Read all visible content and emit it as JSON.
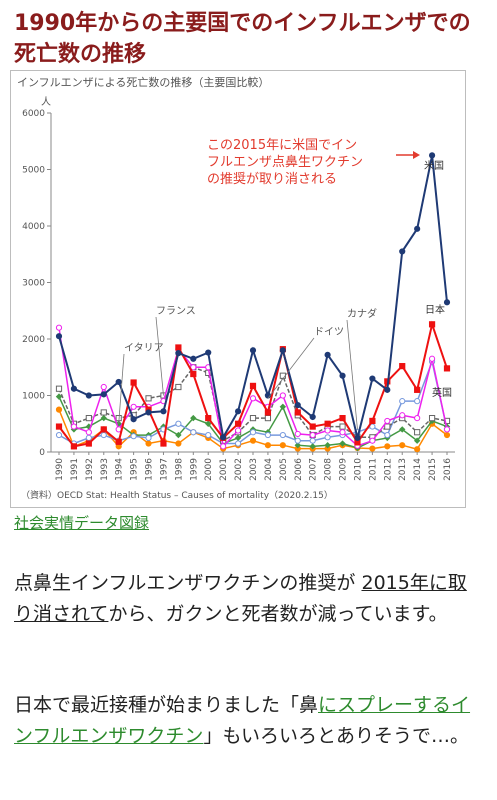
{
  "article": {
    "heading": "1990年からの主要国でのインフルエンザでの死亡数の推移",
    "source_link": "社会実情データ図録",
    "p1": {
      "before": "点鼻生インフルエンザワクチンの推奨が ",
      "link": "2015年に取り消されて",
      "after": "から、ガクンと死者数が減っています。"
    },
    "p2": {
      "before": "日本で最近接種が始まりました「鼻",
      "link": "にスプレーするインフルエンザワクチン",
      "after": "」もいろいろとありそうで…。"
    }
  },
  "chart_data": {
    "type": "line",
    "title": "インフルエンザによる死亡数の推移（主要国比較）",
    "ylabel": "人",
    "ylim": [
      0,
      6000
    ],
    "yticks": [
      0,
      1000,
      2000,
      3000,
      4000,
      5000,
      6000
    ],
    "categories": [
      "1990",
      "1991",
      "1992",
      "1993",
      "1994",
      "1995",
      "1996",
      "1997",
      "1998",
      "1999",
      "2000",
      "2001",
      "2002",
      "2003",
      "2004",
      "2005",
      "2006",
      "2007",
      "2008",
      "2009",
      "2010",
      "2011",
      "2012",
      "2013",
      "2014",
      "2015",
      "2016"
    ],
    "series": [
      {
        "name": "米国",
        "color": "#1f3a75",
        "marker": "circle",
        "values": [
          2050,
          1120,
          1000,
          1020,
          1240,
          580,
          700,
          720,
          1750,
          1650,
          1760,
          260,
          720,
          1800,
          1000,
          1800,
          830,
          620,
          1720,
          1350,
          250,
          1300,
          1100,
          3550,
          3950,
          5250,
          2650
        ]
      },
      {
        "name": "日本",
        "color": "#ee1111",
        "marker": "square",
        "values": [
          450,
          100,
          150,
          400,
          180,
          1230,
          750,
          150,
          1850,
          1380,
          600,
          250,
          500,
          1170,
          700,
          1820,
          700,
          450,
          500,
          600,
          170,
          550,
          1250,
          1520,
          1100,
          2260,
          1480
        ]
      },
      {
        "name": "ドイツ",
        "color": "#ee22ee",
        "marker": "circle",
        "values": [
          2200,
          450,
          350,
          1150,
          400,
          800,
          800,
          900,
          1820,
          1500,
          1500,
          100,
          380,
          950,
          800,
          1000,
          320,
          300,
          380,
          350,
          110,
          200,
          550,
          650,
          600,
          1650,
          400
        ]
      },
      {
        "name": "フランス",
        "color": "#666666",
        "marker": "square",
        "dashed": true,
        "values": [
          1120,
          500,
          600,
          700,
          600,
          650,
          950,
          1000,
          1150,
          1500,
          1400,
          200,
          350,
          600,
          600,
          1350,
          650,
          300,
          450,
          450,
          260,
          260,
          450,
          600,
          350,
          600,
          550
        ]
      },
      {
        "name": "イタリア",
        "color": "#7799dd",
        "marker": "circle",
        "values": [
          300,
          150,
          250,
          300,
          200,
          280,
          250,
          400,
          500,
          350,
          300,
          150,
          150,
          350,
          300,
          300,
          200,
          200,
          260,
          300,
          350,
          450,
          300,
          900,
          900,
          1600,
          400
        ]
      },
      {
        "name": "カナダ",
        "color": "#449944",
        "marker": "diamond",
        "values": [
          980,
          400,
          450,
          600,
          500,
          300,
          300,
          450,
          300,
          600,
          500,
          150,
          250,
          400,
          350,
          800,
          120,
          100,
          120,
          150,
          70,
          200,
          250,
          400,
          200,
          550,
          450
        ]
      },
      {
        "name": "英国",
        "color": "#ff8800",
        "marker": "circle",
        "values": [
          750,
          100,
          200,
          400,
          100,
          350,
          150,
          200,
          150,
          350,
          250,
          60,
          120,
          200,
          120,
          120,
          60,
          60,
          60,
          120,
          70,
          60,
          100,
          120,
          50,
          500,
          300
        ]
      }
    ],
    "annotation": "この2015年に米国でインフルエンザ点鼻生ワクチンの推奨が取り消される",
    "source": "（資料）OECD Stat: Health Status – Causes of mortality（2020.2.15）",
    "grid": false
  }
}
